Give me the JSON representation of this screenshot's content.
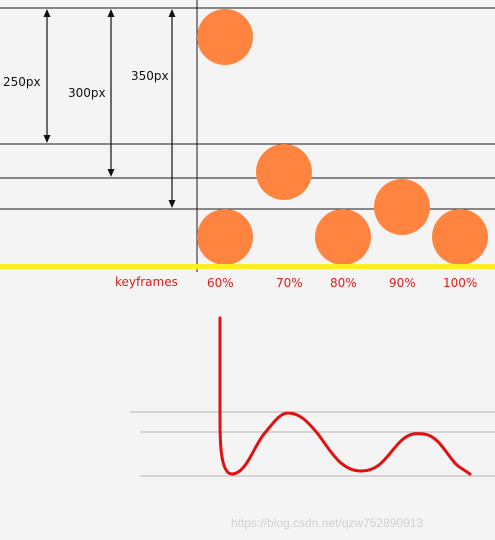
{
  "measurements": [
    {
      "label": "250px"
    },
    {
      "label": "300px"
    },
    {
      "label": "350px"
    }
  ],
  "keyframes_label": "keyframes",
  "keyframe_percents": [
    "60%",
    "70%",
    "80%",
    "90%",
    "100%"
  ],
  "watermark": "https://blog.csdn.net/qzw752890913",
  "colors": {
    "ball": "#ff8440",
    "floor": "#ffee22",
    "curve": "#e11111",
    "label_red": "#e11b1b",
    "line": "#1a1a1a",
    "grid": "#b5b5b5",
    "background": "#f4f4f4"
  }
}
